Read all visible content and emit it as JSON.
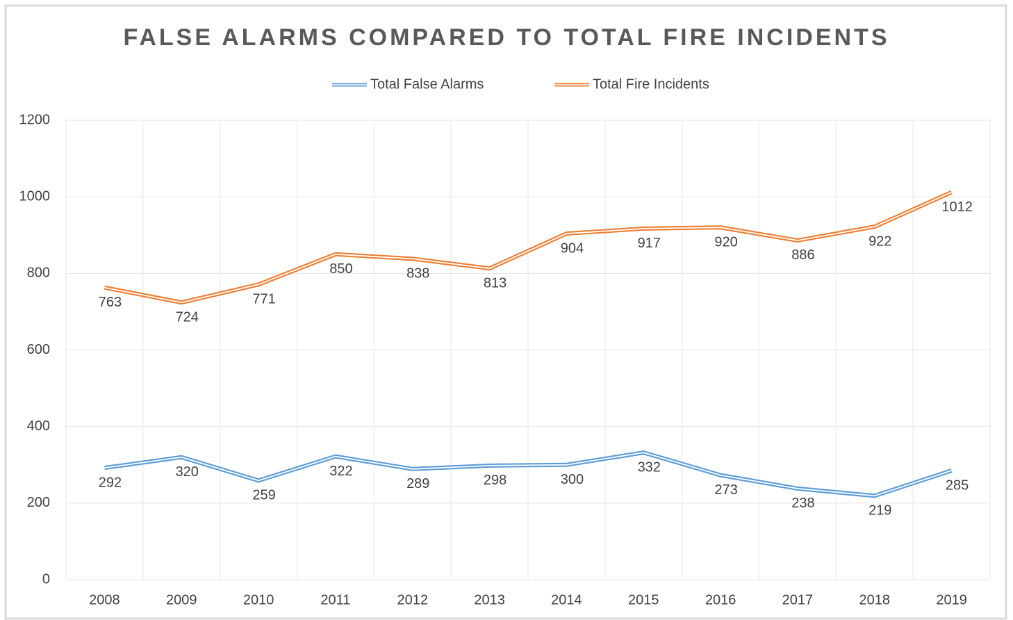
{
  "chart_data": {
    "type": "line",
    "title": "FALSE ALARMS COMPARED TO TOTAL FIRE INCIDENTS",
    "categories": [
      "2008",
      "2009",
      "2010",
      "2011",
      "2012",
      "2013",
      "2014",
      "2015",
      "2016",
      "2017",
      "2018",
      "2019"
    ],
    "series": [
      {
        "name": "Total False Alarms",
        "color": "#5b9bd5",
        "values": [
          292,
          320,
          259,
          322,
          289,
          298,
          300,
          332,
          273,
          238,
          219,
          285
        ]
      },
      {
        "name": "Total Fire Incidents",
        "color": "#ed7d31",
        "values": [
          763,
          724,
          771,
          850,
          838,
          813,
          904,
          917,
          920,
          886,
          922,
          1012
        ]
      }
    ],
    "ylim": [
      0,
      1200
    ],
    "yticks": [
      0,
      200,
      400,
      600,
      800,
      1000,
      1200
    ],
    "grid": true,
    "legend": "top"
  }
}
